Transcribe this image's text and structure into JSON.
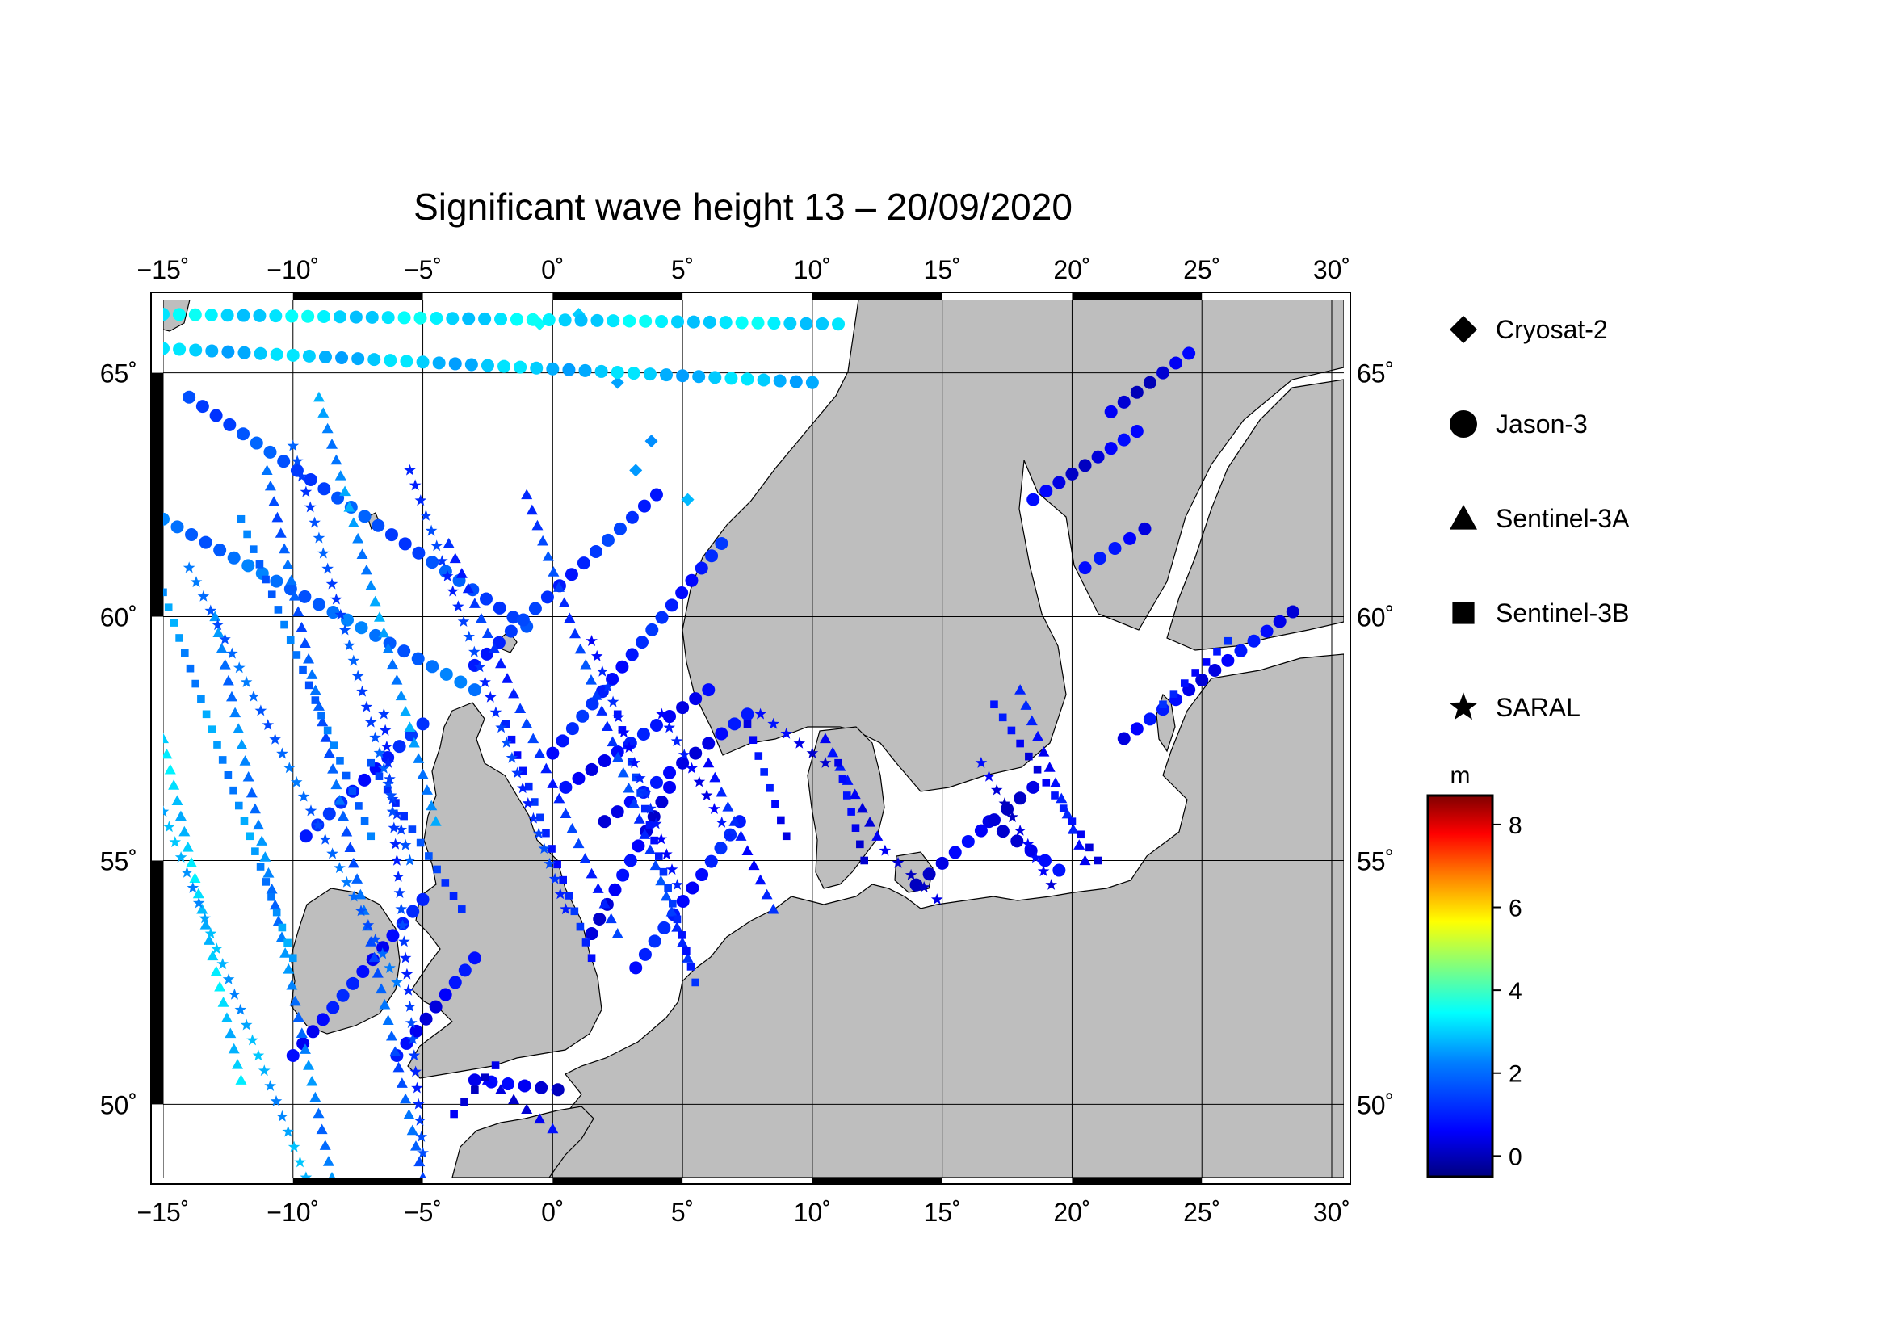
{
  "title": "Significant wave height 13 – 20/09/2020",
  "map": {
    "lon_range": [
      -15,
      30
    ],
    "lat_range": [
      48.5,
      66.5
    ],
    "lon_ticks": [
      {
        "value": -15,
        "label": "−15˚"
      },
      {
        "value": -10,
        "label": "−10˚"
      },
      {
        "value": -5,
        "label": "−5˚"
      },
      {
        "value": 0,
        "label": "0˚"
      },
      {
        "value": 5,
        "label": "5˚"
      },
      {
        "value": 10,
        "label": "10˚"
      },
      {
        "value": 15,
        "label": "15˚"
      },
      {
        "value": 20,
        "label": "20˚"
      },
      {
        "value": 25,
        "label": "25˚"
      },
      {
        "value": 30,
        "label": "30˚"
      }
    ],
    "lat_ticks": [
      {
        "value": 50,
        "label": "50˚"
      },
      {
        "value": 55,
        "label": "55˚"
      },
      {
        "value": 60,
        "label": "60˚"
      },
      {
        "value": 65,
        "label": "65˚"
      }
    ],
    "grid": true,
    "land_color": "#bebebe",
    "sea_color": "#ffffff"
  },
  "legend": {
    "items": [
      {
        "label": "Cryosat-2",
        "symbol": "diamond"
      },
      {
        "label": "Jason-3",
        "symbol": "circle"
      },
      {
        "label": "Sentinel-3A",
        "symbol": "triangle"
      },
      {
        "label": "Sentinel-3B",
        "symbol": "square"
      },
      {
        "label": "SARAL",
        "symbol": "star"
      }
    ]
  },
  "colorbar": {
    "unit": "m",
    "min": -0.5,
    "max": 8.7,
    "ticks": [
      {
        "value": 0,
        "label": "0"
      },
      {
        "value": 2,
        "label": "2"
      },
      {
        "value": 4,
        "label": "4"
      },
      {
        "value": 6,
        "label": "6"
      },
      {
        "value": 8,
        "label": "8"
      }
    ],
    "colormap": [
      "#00007f",
      "#0000ff",
      "#007fff",
      "#00ffff",
      "#7fff7f",
      "#ffff00",
      "#ff7f00",
      "#ff0000",
      "#7f0000"
    ]
  },
  "chart_data": {
    "type": "scatter",
    "title": "Significant wave height 13 – 20/09/2020",
    "xlim": [
      -15,
      30
    ],
    "ylim": [
      48.5,
      66.5
    ],
    "color_variable_unit": "m",
    "series": [
      {
        "name": "Cryosat-2",
        "marker": "diamond",
        "points": [
          {
            "lon": 1.0,
            "lat": 66.2,
            "swh": 3.0
          },
          {
            "lon": 2.5,
            "lat": 64.8,
            "swh": 2.6
          },
          {
            "lon": 3.8,
            "lat": 63.6,
            "swh": 2.4
          },
          {
            "lon": 5.2,
            "lat": 62.4,
            "swh": 2.8
          },
          {
            "lon": 3.2,
            "lat": 63.0,
            "swh": 2.5
          },
          {
            "lon": -0.5,
            "lat": 66.0,
            "swh": 3.5
          }
        ]
      },
      {
        "name": "Jason-3",
        "marker": "circle",
        "tracks": [
          {
            "from": [
              -15,
              66.2
            ],
            "to": [
              11,
              66.0
            ],
            "swh": 3.2
          },
          {
            "from": [
              -15,
              65.5
            ],
            "to": [
              10,
              64.8
            ],
            "swh": 2.9
          },
          {
            "from": [
              -15,
              62.0
            ],
            "to": [
              -3,
              58.5
            ],
            "swh": 2.0
          },
          {
            "from": [
              -14,
              64.5
            ],
            "to": [
              -1,
              59.8
            ],
            "swh": 1.6
          },
          {
            "from": [
              -3,
              59.0
            ],
            "to": [
              4,
              62.5
            ],
            "swh": 1.2
          },
          {
            "from": [
              0,
              57.2
            ],
            "to": [
              6.5,
              61.5
            ],
            "swh": 1.0
          },
          {
            "from": [
              -9.5,
              55.5
            ],
            "to": [
              -5,
              57.8
            ],
            "swh": 1.0
          },
          {
            "from": [
              -5,
              54.2
            ],
            "to": [
              -10,
              51.0
            ],
            "swh": 0.8
          },
          {
            "from": [
              -6,
              51.0
            ],
            "to": [
              -3,
              53.0
            ],
            "swh": 0.6
          },
          {
            "from": [
              0.5,
              56.5
            ],
            "to": [
              6.0,
              58.5
            ],
            "swh": 0.7
          },
          {
            "from": [
              1.5,
              53.5
            ],
            "to": [
              4.5,
              56.5
            ],
            "swh": 0.5
          },
          {
            "from": [
              2.0,
              55.8
            ],
            "to": [
              7.5,
              58.0
            ],
            "swh": 0.6
          },
          {
            "from": [
              3.2,
              52.8
            ],
            "to": [
              7.2,
              55.8
            ],
            "swh": 0.9
          },
          {
            "from": [
              20.5,
              61.0
            ],
            "to": [
              22.8,
              61.8
            ],
            "swh": 0.6
          },
          {
            "from": [
              18.5,
              62.4
            ],
            "to": [
              22.5,
              63.8
            ],
            "swh": 0.4
          },
          {
            "from": [
              21.5,
              64.2
            ],
            "to": [
              24.5,
              65.4
            ],
            "swh": 0.3
          },
          {
            "from": [
              16.8,
              55.8
            ],
            "to": [
              19.5,
              54.8
            ],
            "swh": 0.5
          },
          {
            "from": [
              14.0,
              54.5
            ],
            "to": [
              18.5,
              56.5
            ],
            "swh": 0.4
          },
          {
            "from": [
              22.0,
              57.5
            ],
            "to": [
              28.5,
              60.1
            ],
            "swh": 0.6
          },
          {
            "from": [
              -3.0,
              50.5
            ],
            "to": [
              0.2,
              50.3
            ],
            "swh": 0.4
          }
        ]
      },
      {
        "name": "Sentinel-3A",
        "marker": "triangle",
        "tracks": [
          {
            "from": [
              -15,
              57.5
            ],
            "to": [
              -12,
              50.5
            ],
            "swh": 3.0
          },
          {
            "from": [
              -13,
              60.0
            ],
            "to": [
              -8.5,
              48.5
            ],
            "swh": 2.2
          },
          {
            "from": [
              -11,
              63.0
            ],
            "to": [
              -5,
              48.5
            ],
            "swh": 1.8
          },
          {
            "from": [
              -4,
              61.5
            ],
            "to": [
              2.5,
              53.5
            ],
            "swh": 1.2
          },
          {
            "from": [
              -1,
              62.5
            ],
            "to": [
              5.2,
              53.0
            ],
            "swh": 1.4
          },
          {
            "from": [
              6,
              57.0
            ],
            "to": [
              8.5,
              54.0
            ],
            "swh": 0.9
          },
          {
            "from": [
              10.5,
              57.5
            ],
            "to": [
              12.5,
              55.5
            ],
            "swh": 0.6
          },
          {
            "from": [
              18.0,
              58.5
            ],
            "to": [
              20.5,
              55.0
            ],
            "swh": 0.8
          },
          {
            "from": [
              -9,
              64.5
            ],
            "to": [
              -4.5,
              55.8
            ],
            "swh": 2.4
          },
          {
            "from": [
              -2.5,
              50.5
            ],
            "to": [
              0.0,
              49.5
            ],
            "swh": 0.5
          }
        ]
      },
      {
        "name": "Sentinel-3B",
        "marker": "square",
        "tracks": [
          {
            "from": [
              -15,
              60.5
            ],
            "to": [
              -10,
              53.0
            ],
            "swh": 2.4
          },
          {
            "from": [
              -12,
              62.0
            ],
            "to": [
              -7,
              55.5
            ],
            "swh": 2.0
          },
          {
            "from": [
              -7,
              57.0
            ],
            "to": [
              -3.5,
              54.0
            ],
            "swh": 1.4
          },
          {
            "from": [
              -1.8,
              57.8
            ],
            "to": [
              1.5,
              53.0
            ],
            "swh": 1.0
          },
          {
            "from": [
              2.5,
              58.0
            ],
            "to": [
              5.5,
              52.5
            ],
            "swh": 1.1
          },
          {
            "from": [
              7.5,
              57.8
            ],
            "to": [
              9.0,
              55.5
            ],
            "swh": 0.7
          },
          {
            "from": [
              11.0,
              57.0
            ],
            "to": [
              12.0,
              55.0
            ],
            "swh": 0.5
          },
          {
            "from": [
              17.0,
              58.2
            ],
            "to": [
              21.0,
              55.0
            ],
            "swh": 0.6
          },
          {
            "from": [
              23.5,
              58.2
            ],
            "to": [
              26.0,
              59.5
            ],
            "swh": 0.9
          },
          {
            "from": [
              -3.8,
              49.8
            ],
            "to": [
              -2.2,
              50.8
            ],
            "swh": 0.4
          }
        ]
      },
      {
        "name": "SARAL",
        "marker": "star",
        "tracks": [
          {
            "from": [
              -15,
              56.0
            ],
            "to": [
              -9.5,
              48.5
            ],
            "swh": 2.6
          },
          {
            "from": [
              -14,
              61.0
            ],
            "to": [
              -6,
              52.5
            ],
            "swh": 1.9
          },
          {
            "from": [
              -10,
              63.5
            ],
            "to": [
              -5.5,
              55.0
            ],
            "swh": 1.6
          },
          {
            "from": [
              -6.5,
              58.0
            ],
            "to": [
              -5,
              49.0
            ],
            "swh": 1.3
          },
          {
            "from": [
              -5.5,
              63.0
            ],
            "to": [
              0.5,
              54.0
            ],
            "swh": 1.3
          },
          {
            "from": [
              1.5,
              59.5
            ],
            "to": [
              4.8,
              54.5
            ],
            "swh": 0.9
          },
          {
            "from": [
              4.2,
              58.0
            ],
            "to": [
              6.8,
              55.5
            ],
            "swh": 0.7
          },
          {
            "from": [
              8.0,
              58.0
            ],
            "to": [
              10.5,
              57.0
            ],
            "swh": 0.5
          },
          {
            "from": [
              16.5,
              57.0
            ],
            "to": [
              19.2,
              54.5
            ],
            "swh": 0.4
          },
          {
            "from": [
              12.8,
              55.2
            ],
            "to": [
              14.8,
              54.2
            ],
            "swh": 0.4
          }
        ]
      }
    ]
  }
}
